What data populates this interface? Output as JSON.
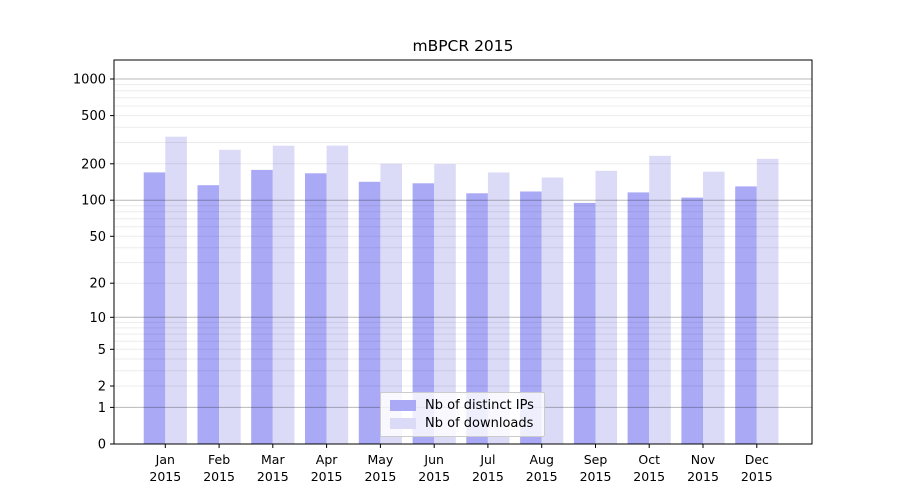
{
  "title": "mBPCR 2015",
  "chart_data": {
    "type": "bar",
    "title": "mBPCR 2015",
    "categories": [
      "Jan",
      "Feb",
      "Mar",
      "Apr",
      "May",
      "Jun",
      "Jul",
      "Aug",
      "Sep",
      "Oct",
      "Nov",
      "Dec"
    ],
    "category_year": "2015",
    "series": [
      {
        "name": "Nb of distinct IPs",
        "color": "#a9a9f6",
        "values": [
          170,
          133,
          178,
          167,
          142,
          138,
          114,
          118,
          95,
          116,
          105,
          130
        ]
      },
      {
        "name": "Nb of downloads",
        "color": "#dbdbf8",
        "values": [
          335,
          261,
          282,
          283,
          200,
          199,
          170,
          154,
          175,
          233,
          172,
          220
        ]
      }
    ],
    "y_axis": {
      "scale": "log10(1+x)",
      "ticks": [
        0,
        1,
        2,
        5,
        10,
        20,
        50,
        100,
        200,
        500,
        1000
      ],
      "ylim": [
        0,
        1430
      ]
    },
    "x_axis": {
      "label_lines": 2
    },
    "grid": true,
    "legend_position": "lower center",
    "colors": {
      "background": "#ffffff",
      "axis": "#000000",
      "major_grid": "#b3b3b3",
      "minor_grid": "#ebebeb"
    }
  }
}
